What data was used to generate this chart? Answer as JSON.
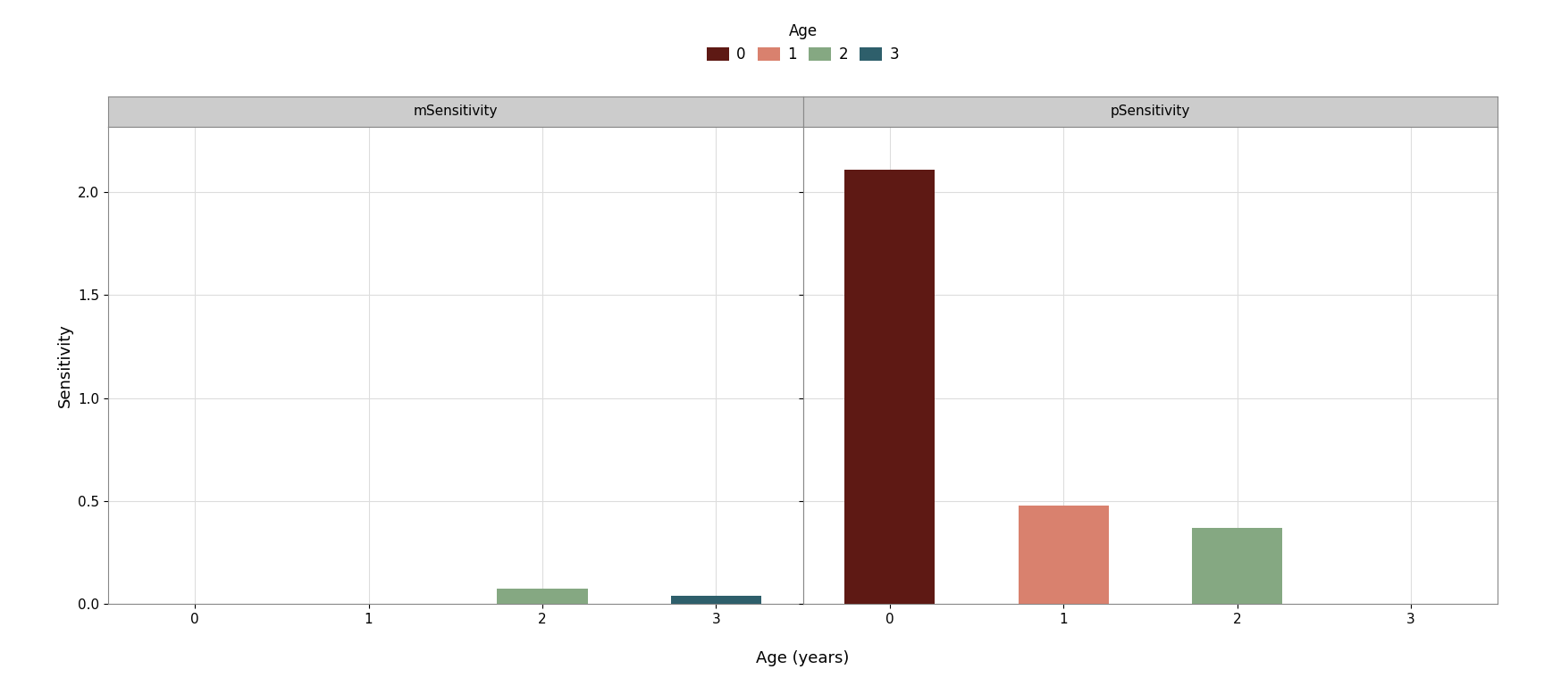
{
  "panels": [
    "mSensitivity",
    "pSensitivity"
  ],
  "age_colors": {
    "0": "#5e1914",
    "1": "#d9816e",
    "2": "#85a882",
    "3": "#2e5f6b"
  },
  "age_labels": [
    "0",
    "1",
    "2",
    "3"
  ],
  "mSensitivity": [
    {
      "age": 2,
      "value": 0.073,
      "color_key": "2"
    },
    {
      "age": 3,
      "value": 0.038,
      "color_key": "3"
    }
  ],
  "pSensitivity": [
    {
      "age": 0,
      "value": 2.11,
      "color_key": "0"
    },
    {
      "age": 1,
      "value": 0.475,
      "color_key": "1"
    },
    {
      "age": 2,
      "value": 0.37,
      "color_key": "2"
    }
  ],
  "bar_width": 0.52,
  "xlim": [
    -0.5,
    3.5
  ],
  "ylim": [
    0,
    2.32
  ],
  "yticks": [
    0.0,
    0.5,
    1.0,
    1.5,
    2.0
  ],
  "xticks": [
    0,
    1,
    2,
    3
  ],
  "xlabel": "Age (years)",
  "ylabel": "Sensitivity",
  "panel_title_fontsize": 11,
  "axis_label_fontsize": 13,
  "tick_fontsize": 11,
  "legend_fontsize": 12,
  "background_color": "#ffffff",
  "panel_bg_color": "#ffffff",
  "panel_header_color": "#cccccc",
  "grid_color": "#dddddd",
  "spine_color": "#888888",
  "strip_height_ratio": 0.07
}
